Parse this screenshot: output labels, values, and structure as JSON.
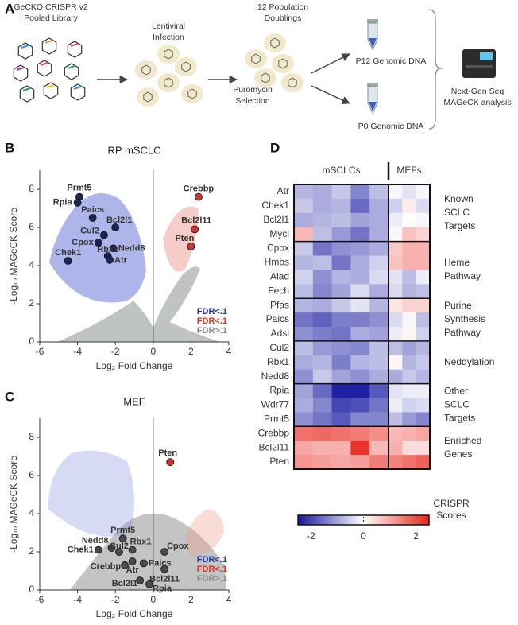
{
  "panels": [
    "A",
    "B",
    "C",
    "D"
  ],
  "schematic": {
    "steps": [
      [
        "GeCKO CRISPR v2",
        "Pooled Library"
      ],
      [
        "Lentiviral",
        "Infection"
      ],
      [
        "12 Population",
        "Doublings"
      ]
    ],
    "selection": [
      "Puromycin",
      "Selection"
    ],
    "samples": [
      "P12 Genomic DNA",
      "P0 Genomic DNA"
    ],
    "analysis": [
      "Next-Gen Seq",
      "MAGeCK analysis"
    ]
  },
  "chart_data": [
    {
      "type": "scatter",
      "title": "RP mSCLC",
      "x_label": "Log₂ Fold Change",
      "y_label": "-Log₁₀ MAGeCK Score",
      "xlim": [
        -6,
        4
      ],
      "ylim": [
        0,
        9
      ],
      "xticks": [
        -6,
        -4,
        -2,
        0,
        2,
        4
      ],
      "yticks": [
        0,
        2,
        4,
        6,
        8
      ],
      "legend": "lower right",
      "series": [
        {
          "name": "FDR<.1",
          "color": "#1f33a8",
          "point_color": "#1c2358",
          "labels": [
            "Prmt5",
            "Rpia",
            "Paics",
            "Bcl2l1",
            "Cul2",
            "Cpox",
            "Nedd8",
            "Rbx1",
            "Chek1",
            "Atr"
          ],
          "x": [
            -3.9,
            -4.0,
            -3.2,
            -2.0,
            -2.6,
            -2.9,
            -2.1,
            -2.4,
            -4.5,
            -2.3
          ],
          "y": [
            7.6,
            7.3,
            6.5,
            6.0,
            5.6,
            5.2,
            4.9,
            4.5,
            4.25,
            4.3
          ]
        },
        {
          "name": "FDR<.1",
          "color": "#e0301e",
          "point_color": "#c8372d",
          "labels": [
            "Crebbp",
            "Bcl2l11",
            "Pten"
          ],
          "x": [
            2.4,
            2.2,
            2.0
          ],
          "y": [
            7.6,
            5.9,
            5.0
          ]
        },
        {
          "name": "FDR>.1",
          "color": "#8c8c8c",
          "point_color": "#4a4a4a",
          "labels": [],
          "x": [],
          "y": []
        }
      ]
    },
    {
      "type": "scatter",
      "title": "MEF",
      "x_label": "Log₂ Fold Change",
      "y_label": "-Log₁₀ MAGeCK Score",
      "xlim": [
        -6,
        4
      ],
      "ylim": [
        0,
        9
      ],
      "xticks": [
        -6,
        -4,
        -2,
        0,
        2,
        4
      ],
      "yticks": [
        0,
        2,
        4,
        6,
        8
      ],
      "legend": "lower right",
      "series": [
        {
          "name": "FDR<.1",
          "color": "#1f33a8",
          "point_color": "#1c2358",
          "labels": [],
          "x": [],
          "y": []
        },
        {
          "name": "FDR<.1",
          "color": "#e0301e",
          "point_color": "#c8372d",
          "labels": [
            "Pten"
          ],
          "x": [
            0.9
          ],
          "y": [
            6.7
          ]
        },
        {
          "name": "FDR>.1",
          "color": "#8c8c8c",
          "point_color": "#4a4a4a",
          "labels": [
            "Prmt5",
            "Nedd8",
            "Chek1",
            "Cul2",
            "Rbx1",
            "Cpox",
            "Crebbp",
            "Atr",
            "Paics",
            "Bcl2l11",
            "Bcl2l1",
            "Rpia"
          ],
          "x": [
            -1.6,
            -2.2,
            -2.9,
            -1.8,
            -1.1,
            0.6,
            -1.5,
            -1.1,
            -0.5,
            0.6,
            -0.7,
            -0.2
          ],
          "y": [
            2.7,
            2.2,
            2.1,
            2.0,
            2.1,
            2.0,
            1.3,
            1.5,
            1.4,
            1.1,
            0.5,
            0.3
          ]
        }
      ]
    },
    {
      "type": "heatmap",
      "row_groups": [
        {
          "label": [
            "Known",
            "SCLC",
            "Targets"
          ],
          "rows": [
            "Atr",
            "Chek1",
            "Bcl2l1",
            "Mycl"
          ]
        },
        {
          "label": [
            "Heme",
            "Pathway"
          ],
          "rows": [
            "Cpox",
            "Hmbs",
            "Alad",
            "Fech"
          ]
        },
        {
          "label": [
            "Purine",
            "Synthesis",
            "Pathway"
          ],
          "rows": [
            "Pfas",
            "Paics",
            "Adsl"
          ]
        },
        {
          "label": [
            "Neddylation"
          ],
          "rows": [
            "Cul2",
            "Rbx1",
            "Nedd8"
          ]
        },
        {
          "label": [
            "Other",
            "SCLC",
            "Targets"
          ],
          "rows": [
            "Rpia",
            "Wdr77",
            "Prmt5"
          ]
        },
        {
          "label": [
            "Enriched",
            "Genes"
          ],
          "rows": [
            "Crebbp",
            "Bcl2l11",
            "Pten"
          ]
        }
      ],
      "column_groups": [
        {
          "name": "mSCLCs",
          "values": [
            [
              -0.8,
              -0.9,
              -0.6,
              -1.3,
              -0.7
            ],
            [
              -0.6,
              -0.9,
              -0.8,
              -1.6,
              -0.9
            ],
            [
              -0.9,
              -0.8,
              -0.7,
              -1.0,
              -0.9
            ],
            [
              0.8,
              -0.7,
              -1.1,
              -1.5,
              -0.9
            ],
            [
              -0.6,
              -1.5,
              -1.2,
              -1.1,
              -0.9
            ],
            [
              -0.8,
              -0.7,
              -1.5,
              -0.9,
              -0.5
            ],
            [
              -0.5,
              -1.2,
              -0.8,
              -0.9,
              -0.4
            ],
            [
              -0.7,
              -1.3,
              -1.0,
              -0.4,
              -0.9
            ],
            [
              -0.8,
              -0.9,
              -0.6,
              -0.3,
              -0.8
            ],
            [
              -1.5,
              -1.7,
              -1.4,
              -1.4,
              -1.2
            ],
            [
              -1.2,
              -1.4,
              -1.5,
              -0.9,
              -1.0
            ],
            [
              -0.7,
              -1.1,
              -1.2,
              -1.3,
              -0.7
            ],
            [
              -0.9,
              -0.8,
              -1.4,
              -0.8,
              -0.7
            ],
            [
              -1.2,
              -0.6,
              -1.0,
              -1.2,
              -0.9
            ],
            [
              -1.0,
              -1.6,
              -2.4,
              -2.4,
              -1.8
            ],
            [
              -0.9,
              -1.3,
              -2.0,
              -1.9,
              -1.5
            ],
            [
              -1.2,
              -1.5,
              -1.8,
              -1.3,
              -1.3
            ],
            [
              1.6,
              1.7,
              1.6,
              1.5,
              1.3
            ],
            [
              1.0,
              0.9,
              0.9,
              2.3,
              0.8
            ],
            [
              1.2,
              1.1,
              1.0,
              1.1,
              1.5
            ]
          ]
        },
        {
          "name": "MEFs",
          "values": [
            [
              -0.1,
              -0.3,
              -0.1
            ],
            [
              -0.5,
              0.2,
              -0.4
            ],
            [
              -0.2,
              0.0,
              -0.1
            ],
            [
              -0.1,
              0.7,
              0.5
            ],
            [
              0.6,
              0.9,
              0.9
            ],
            [
              0.7,
              0.9,
              0.9
            ],
            [
              -0.3,
              -0.7,
              -0.2
            ],
            [
              -0.4,
              -0.8,
              -0.7
            ],
            [
              0.3,
              0.5,
              0.5
            ],
            [
              -0.4,
              -0.1,
              -0.7
            ],
            [
              -0.2,
              0.1,
              -0.5
            ],
            [
              -0.7,
              -1.0,
              -0.8
            ],
            [
              0.1,
              -0.8,
              -0.6
            ],
            [
              -0.9,
              -0.6,
              -0.8
            ],
            [
              -0.3,
              -0.2,
              -0.2
            ],
            [
              -0.2,
              -0.5,
              -0.4
            ],
            [
              -0.7,
              -1.1,
              -1.3
            ],
            [
              0.8,
              0.9,
              1.0
            ],
            [
              0.9,
              0.4,
              0.4
            ],
            [
              1.4,
              1.6,
              1.8
            ]
          ]
        }
      ],
      "colorbar": {
        "title": [
          "CRISPR",
          "Scores"
        ],
        "lim": [
          -2.5,
          2.5
        ],
        "ticks": [
          -2,
          0,
          2
        ],
        "colors": [
          "#1518a0",
          "#ffffff",
          "#e8231a"
        ]
      }
    }
  ]
}
